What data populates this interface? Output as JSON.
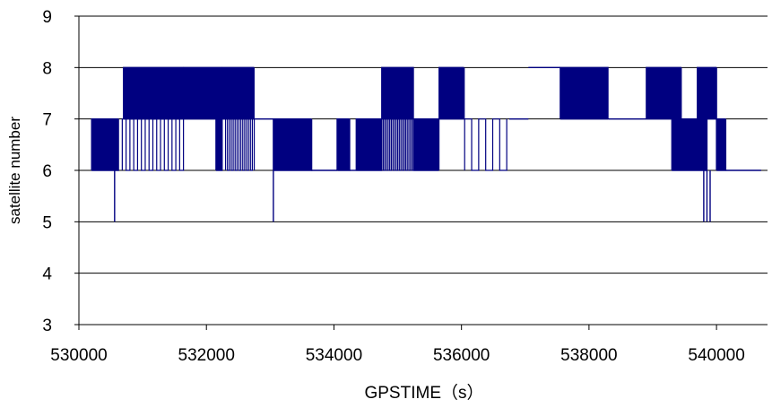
{
  "chart_data": {
    "type": "line",
    "xlabel": "GPSTIME（s）",
    "ylabel": "satellite number",
    "xlim": [
      530000,
      540800
    ],
    "ylim": [
      3,
      9
    ],
    "grid": "horizontal",
    "x_ticks": [
      530000,
      532000,
      534000,
      536000,
      538000,
      540000
    ],
    "y_ticks": [
      3,
      4,
      5,
      6,
      7,
      8,
      9
    ],
    "series_color": "#000080",
    "series": [
      {
        "segments": [
          {
            "x_start": 530200,
            "x_end": 530620,
            "mode": "toggle",
            "values": [
              6,
              7
            ],
            "step": 10
          },
          {
            "x": 530560,
            "values": [
              6,
              5
            ]
          },
          {
            "x_start": 530700,
            "x_end": 531650,
            "mode": "toggle",
            "values": [
              7,
              8
            ],
            "step": 8
          },
          {
            "x_start": 530680,
            "x_end": 531650,
            "mode": "toggle_sparse",
            "values": [
              6,
              7
            ],
            "step": 60
          },
          {
            "x_start": 531650,
            "x_end": 532250,
            "mode": "toggle",
            "values": [
              7,
              8
            ],
            "step": 9
          },
          {
            "x_start": 532150,
            "x_end": 532250,
            "mode": "toggle",
            "values": [
              6,
              7
            ],
            "step": 12
          },
          {
            "x_start": 532250,
            "x_end": 532750,
            "mode": "toggle",
            "values": [
              7,
              8
            ],
            "step": 8
          },
          {
            "x_start": 532300,
            "x_end": 532750,
            "mode": "toggle_sparse",
            "values": [
              6,
              7
            ],
            "step": 30
          },
          {
            "x_start": 532750,
            "x_end": 533050,
            "mode": "hold",
            "value": 7
          },
          {
            "x": 533050,
            "values": [
              6,
              5
            ]
          },
          {
            "x_start": 533050,
            "x_end": 533650,
            "mode": "toggle",
            "values": [
              6,
              7
            ],
            "step": 15
          },
          {
            "x_start": 533650,
            "x_end": 534050,
            "mode": "hold",
            "value": 6
          },
          {
            "x_start": 534050,
            "x_end": 534250,
            "mode": "toggle",
            "values": [
              6,
              7
            ],
            "step": 14
          },
          {
            "x_start": 534250,
            "x_end": 534350,
            "mode": "hold",
            "value": 6
          },
          {
            "x_start": 534350,
            "x_end": 534750,
            "mode": "toggle",
            "values": [
              6,
              7
            ],
            "step": 10
          },
          {
            "x_start": 534750,
            "x_end": 535250,
            "mode": "toggle",
            "values": [
              7,
              8
            ],
            "step": 9
          },
          {
            "x_start": 534750,
            "x_end": 535250,
            "mode": "toggle_sparse",
            "values": [
              6,
              7
            ],
            "step": 25
          },
          {
            "x_start": 535250,
            "x_end": 535650,
            "mode": "toggle",
            "values": [
              6,
              7
            ],
            "step": 12
          },
          {
            "x_start": 535650,
            "x_end": 536050,
            "mode": "toggle",
            "values": [
              7,
              8
            ],
            "step": 14
          },
          {
            "x_start": 536050,
            "x_end": 536750,
            "mode": "toggle_sparse",
            "values": [
              6,
              7
            ],
            "step": 110
          },
          {
            "x_start": 536750,
            "x_end": 537050,
            "mode": "hold",
            "value": 7
          },
          {
            "x_start": 537050,
            "x_end": 537550,
            "mode": "hold",
            "value": 8
          },
          {
            "x_start": 537550,
            "x_end": 538300,
            "mode": "toggle",
            "values": [
              7,
              8
            ],
            "step": 9
          },
          {
            "x_start": 538300,
            "x_end": 538900,
            "mode": "hold",
            "value": 7
          },
          {
            "x_start": 538900,
            "x_end": 539450,
            "mode": "toggle",
            "values": [
              7,
              8
            ],
            "step": 7
          },
          {
            "x_start": 539300,
            "x_end": 539850,
            "mode": "toggle",
            "values": [
              6,
              7
            ],
            "step": 10
          },
          {
            "x_start": 539700,
            "x_end": 540000,
            "mode": "toggle",
            "values": [
              7,
              8
            ],
            "step": 10
          },
          {
            "x": 539800,
            "values": [
              6,
              5
            ]
          },
          {
            "x": 539850,
            "values": [
              6,
              5
            ]
          },
          {
            "x": 539900,
            "values": [
              6,
              5
            ]
          },
          {
            "x_start": 540000,
            "x_end": 540150,
            "mode": "toggle",
            "values": [
              6,
              7
            ],
            "step": 12
          },
          {
            "x_start": 540150,
            "x_end": 540700,
            "mode": "hold",
            "value": 6
          }
        ]
      }
    ]
  }
}
